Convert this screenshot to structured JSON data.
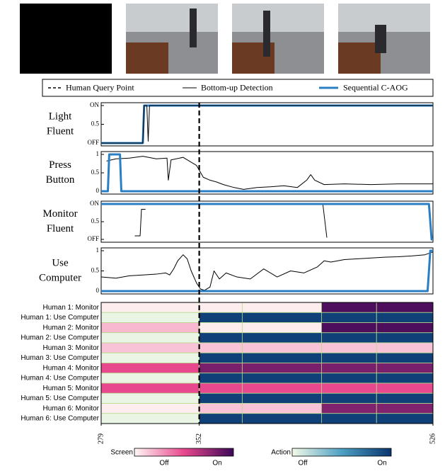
{
  "legend": {
    "entries": [
      {
        "name": "Human Query Point",
        "color": "#000000",
        "dash": true,
        "width": 1.5
      },
      {
        "name": "Bottom-up Detection",
        "color": "#000000",
        "dash": false,
        "width": 1
      },
      {
        "name": "Sequential C-AOG",
        "color": "#2a7fc4",
        "dash": false,
        "width": 3
      }
    ]
  },
  "query_point": 352,
  "chart_data": [
    {
      "type": "line",
      "title": [
        "Light",
        "Fluent"
      ],
      "xlim": [
        279,
        526
      ],
      "ylim": [
        0,
        1
      ],
      "yticks": [
        {
          "value": 0,
          "label": "OFF"
        },
        0.5,
        {
          "value": 1,
          "label": "ON"
        }
      ],
      "series": [
        {
          "color": "#2a7fc4",
          "width": 3,
          "x": [
            279,
            310,
            311,
            526
          ],
          "values": [
            0,
            0,
            1,
            1
          ]
        },
        {
          "color": "#000000",
          "width": 1,
          "x": [
            279,
            310,
            311,
            313,
            314,
            315,
            526
          ],
          "values": [
            0,
            0,
            1,
            1,
            0.05,
            1,
            1
          ]
        }
      ]
    },
    {
      "type": "line",
      "title": [
        "Press",
        "Button"
      ],
      "xlim": [
        279,
        526
      ],
      "ylim": [
        0,
        1
      ],
      "yticks": [
        0,
        0.5,
        1
      ],
      "series": [
        {
          "color": "#000000",
          "width": 1,
          "x": [
            283,
            290,
            300,
            310,
            320,
            328,
            329,
            331,
            340,
            350,
            355,
            360,
            365,
            370,
            378,
            385,
            395,
            405,
            415,
            425,
            432,
            435,
            438,
            445,
            460,
            480,
            500,
            526
          ],
          "values": [
            0.82,
            0.88,
            0.9,
            0.95,
            0.88,
            0.9,
            0.3,
            0.85,
            0.92,
            0.7,
            0.38,
            0.3,
            0.25,
            0.18,
            0.1,
            0.05,
            0.1,
            0.12,
            0.15,
            0.1,
            0.3,
            0.45,
            0.3,
            0.18,
            0.2,
            0.18,
            0.2,
            0.2
          ]
        },
        {
          "color": "#2a7fc4",
          "width": 3,
          "x": [
            279,
            284,
            285,
            293,
            294,
            526
          ],
          "values": [
            0,
            0,
            1,
            1,
            0,
            0
          ]
        }
      ]
    },
    {
      "type": "line",
      "title": [
        "Monitor",
        "Fluent"
      ],
      "xlim": [
        279,
        526
      ],
      "ylim": [
        0,
        1
      ],
      "yticks": [
        {
          "value": 0,
          "label": "OFF"
        },
        0.5,
        {
          "value": 1,
          "label": "ON"
        }
      ],
      "series": [
        {
          "color": "#000000",
          "width": 1,
          "x": [
            304,
            308,
            309,
            312,
            313,
            444,
            447
          ],
          "values": [
            0.1,
            0.1,
            0.85,
            0.85,
            null,
            1,
            0.05
          ]
        },
        {
          "color": "#2a7fc4",
          "width": 3,
          "x": [
            279,
            523,
            525,
            526
          ],
          "values": [
            1,
            1,
            0,
            0
          ]
        }
      ]
    },
    {
      "type": "line",
      "title": [
        "Use",
        "Computer"
      ],
      "xlim": [
        279,
        526
      ],
      "ylim": [
        0,
        1
      ],
      "yticks": [
        0,
        0.5,
        1
      ],
      "series": [
        {
          "color": "#000000",
          "width": 1,
          "x": [
            279,
            290,
            300,
            310,
            320,
            327,
            330,
            333,
            336,
            340,
            343,
            346,
            350,
            353,
            356,
            360,
            363,
            367,
            372,
            380,
            390,
            400,
            410,
            420,
            430,
            440,
            445,
            450,
            460,
            470,
            480,
            490,
            500,
            510,
            520,
            526
          ],
          "values": [
            0.35,
            0.32,
            0.38,
            0.4,
            0.42,
            0.45,
            0.4,
            0.55,
            0.75,
            0.9,
            0.8,
            0.5,
            0.2,
            0.05,
            0.02,
            0.1,
            0.5,
            0.3,
            0.45,
            0.35,
            0.3,
            0.55,
            0.35,
            0.5,
            0.45,
            0.6,
            0.75,
            0.72,
            0.78,
            0.8,
            0.82,
            0.84,
            0.85,
            0.87,
            0.9,
            0.97
          ]
        },
        {
          "color": "#2a7fc4",
          "width": 3,
          "x": [
            279,
            522,
            524,
            526
          ],
          "values": [
            0,
            0,
            1,
            1
          ]
        }
      ]
    },
    {
      "type": "heatmap",
      "xlim": [
        279,
        526
      ],
      "xticks": [
        279,
        352,
        526
      ],
      "rows": [
        "Human 1: Monitor",
        "Human 1: Use Computer",
        "Human 2: Monitor",
        "Human 2: Use Computer",
        "Human 3: Monitor",
        "Human 3: Use Computer",
        "Human 4: Monitor",
        "Human 4: Use Computer",
        "Human 5: Monitor",
        "Human 5: Use Computer",
        "Human 6: Monitor",
        "Human 6: Use Computer"
      ],
      "row_colormap": [
        0,
        1,
        0,
        1,
        0,
        1,
        0,
        1,
        0,
        1,
        0,
        1
      ],
      "x_edges": [
        279,
        352,
        384,
        443,
        484,
        526
      ],
      "values": [
        [
          0.03,
          0.03,
          0.03,
          0.95,
          0.95
        ],
        [
          0.03,
          0.95,
          0.95,
          0.95,
          0.95
        ],
        [
          0.18,
          0.03,
          0.03,
          0.95,
          0.95
        ],
        [
          0.03,
          0.95,
          0.95,
          0.95,
          0.95
        ],
        [
          0.15,
          0.15,
          0.15,
          0.15,
          0.15
        ],
        [
          0.03,
          0.95,
          0.95,
          0.95,
          0.95
        ],
        [
          0.5,
          0.82,
          0.82,
          0.82,
          0.82
        ],
        [
          0.03,
          0.95,
          0.95,
          0.95,
          0.95
        ],
        [
          0.5,
          0.5,
          0.5,
          0.5,
          0.5
        ],
        [
          0.03,
          0.95,
          0.95,
          0.95,
          0.95
        ],
        [
          0.03,
          0.15,
          0.15,
          0.8,
          0.8
        ],
        [
          0.03,
          0.95,
          0.95,
          0.95,
          0.95
        ]
      ],
      "colorbars": [
        {
          "label": "Screen",
          "low": "Off",
          "high": "On",
          "colors": [
            "#fff7f5",
            "#e8488e",
            "#3c0858"
          ]
        },
        {
          "label": "Action",
          "low": "Off",
          "high": "On",
          "colors": [
            "#f4fae8",
            "#4da0c4",
            "#08356e"
          ]
        }
      ]
    }
  ]
}
